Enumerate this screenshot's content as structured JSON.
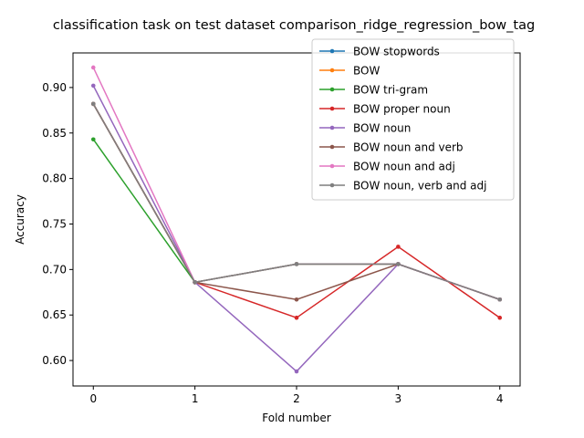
{
  "chart_data": {
    "type": "line",
    "title": "classification task on test dataset comparison_ridge_regression_bow_tag",
    "xlabel": "Fold number",
    "ylabel": "Accuracy",
    "x": [
      0,
      1,
      2,
      3,
      4
    ],
    "xticks": [
      "0",
      "1",
      "2",
      "3",
      "4"
    ],
    "yticks": [
      "0.60",
      "0.65",
      "0.70",
      "0.75",
      "0.80",
      "0.85",
      "0.90"
    ],
    "ytick_values": [
      0.6,
      0.65,
      0.7,
      0.75,
      0.8,
      0.85,
      0.9
    ],
    "xlim": [
      -0.2,
      4.2
    ],
    "ylim": [
      0.572,
      0.938
    ],
    "grid": false,
    "legend_position": "top-right",
    "series": [
      {
        "name": "BOW stopwords",
        "color": "#1f77b4",
        "values": [
          0.882,
          0.686,
          0.706,
          0.706,
          0.667
        ]
      },
      {
        "name": "BOW",
        "color": "#ff7f0e",
        "values": [
          0.882,
          0.686,
          0.706,
          0.706,
          0.667
        ]
      },
      {
        "name": "BOW tri-gram",
        "color": "#2ca02c",
        "values": [
          0.843,
          0.686,
          0.706,
          0.706,
          0.667
        ]
      },
      {
        "name": "BOW proper noun",
        "color": "#d62728",
        "values": [
          0.882,
          0.686,
          0.647,
          0.725,
          0.647
        ]
      },
      {
        "name": "BOW noun",
        "color": "#9467bd",
        "values": [
          0.902,
          0.686,
          0.588,
          0.706,
          0.667
        ]
      },
      {
        "name": "BOW noun and verb",
        "color": "#8c564b",
        "values": [
          0.882,
          0.686,
          0.667,
          0.706,
          0.667
        ]
      },
      {
        "name": "BOW noun and adj",
        "color": "#e377c2",
        "values": [
          0.922,
          0.686,
          0.706,
          0.706,
          0.667
        ]
      },
      {
        "name": "BOW noun, verb and adj",
        "color": "#7f7f7f",
        "values": [
          0.882,
          0.686,
          0.706,
          0.706,
          0.667
        ]
      }
    ]
  }
}
